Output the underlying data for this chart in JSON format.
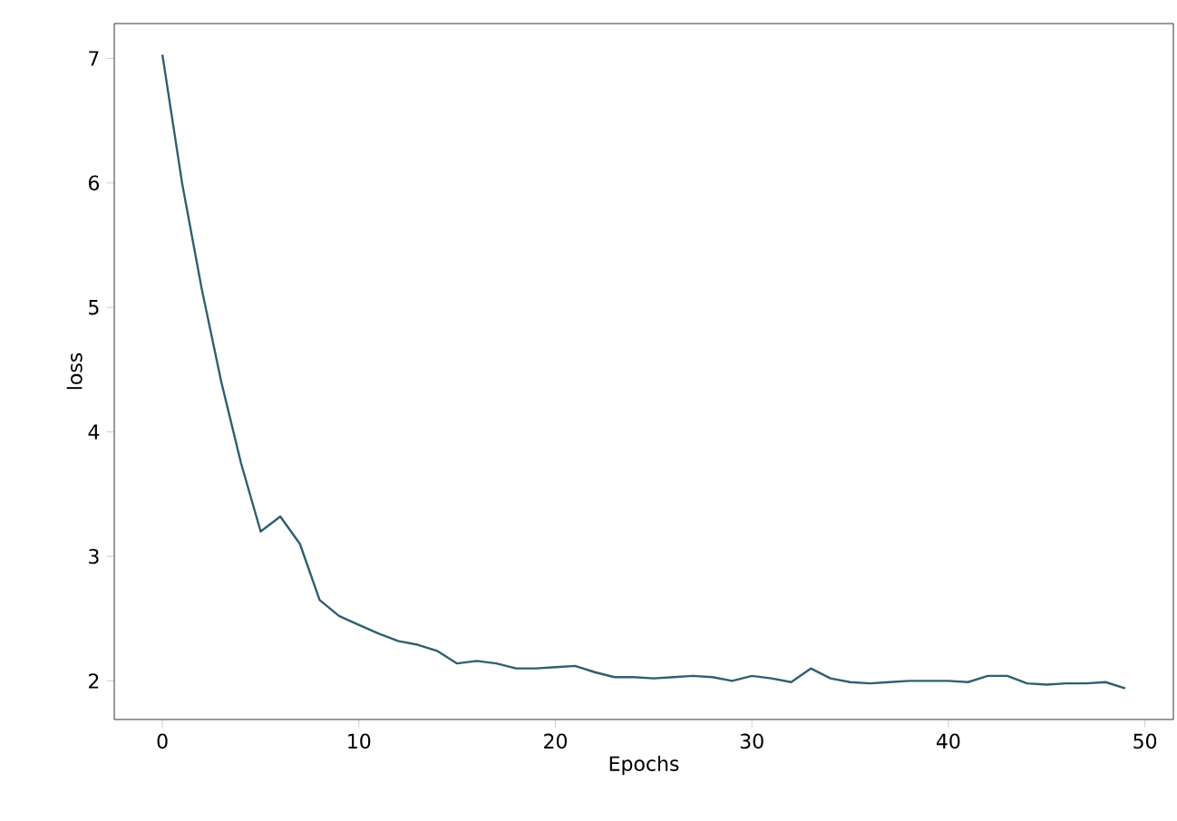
{
  "chart_data": {
    "type": "line",
    "xlabel": "Epochs",
    "ylabel": "loss",
    "x": [
      0,
      1,
      2,
      3,
      4,
      5,
      6,
      7,
      8,
      9,
      10,
      11,
      12,
      13,
      14,
      15,
      16,
      17,
      18,
      19,
      20,
      21,
      22,
      23,
      24,
      25,
      26,
      27,
      28,
      29,
      30,
      31,
      32,
      33,
      34,
      35,
      36,
      37,
      38,
      39,
      40,
      41,
      42,
      43,
      44,
      45,
      46,
      47,
      48,
      49
    ],
    "series": [
      {
        "color": "#2f5f6f",
        "values": [
          7.03,
          6.0,
          5.15,
          4.4,
          3.75,
          3.2,
          3.32,
          3.1,
          2.65,
          2.52,
          2.45,
          2.38,
          2.32,
          2.29,
          2.24,
          2.14,
          2.16,
          2.14,
          2.1,
          2.1,
          2.11,
          2.12,
          2.07,
          2.03,
          2.03,
          2.02,
          2.03,
          2.04,
          2.03,
          2.0,
          2.04,
          2.02,
          1.99,
          2.1,
          2.02,
          1.99,
          1.98,
          1.99,
          2.0,
          2.0,
          2.0,
          1.99,
          2.04,
          2.04,
          1.98,
          1.97,
          1.98,
          1.98,
          1.99,
          1.94
        ]
      }
    ],
    "xlim": [
      -2.45,
      51.45
    ],
    "ylim": [
      1.69,
      7.28
    ],
    "xticks": [
      0,
      10,
      20,
      30,
      40,
      50
    ],
    "yticks": [
      2,
      3,
      4,
      5,
      6,
      7
    ],
    "grid": false
  }
}
